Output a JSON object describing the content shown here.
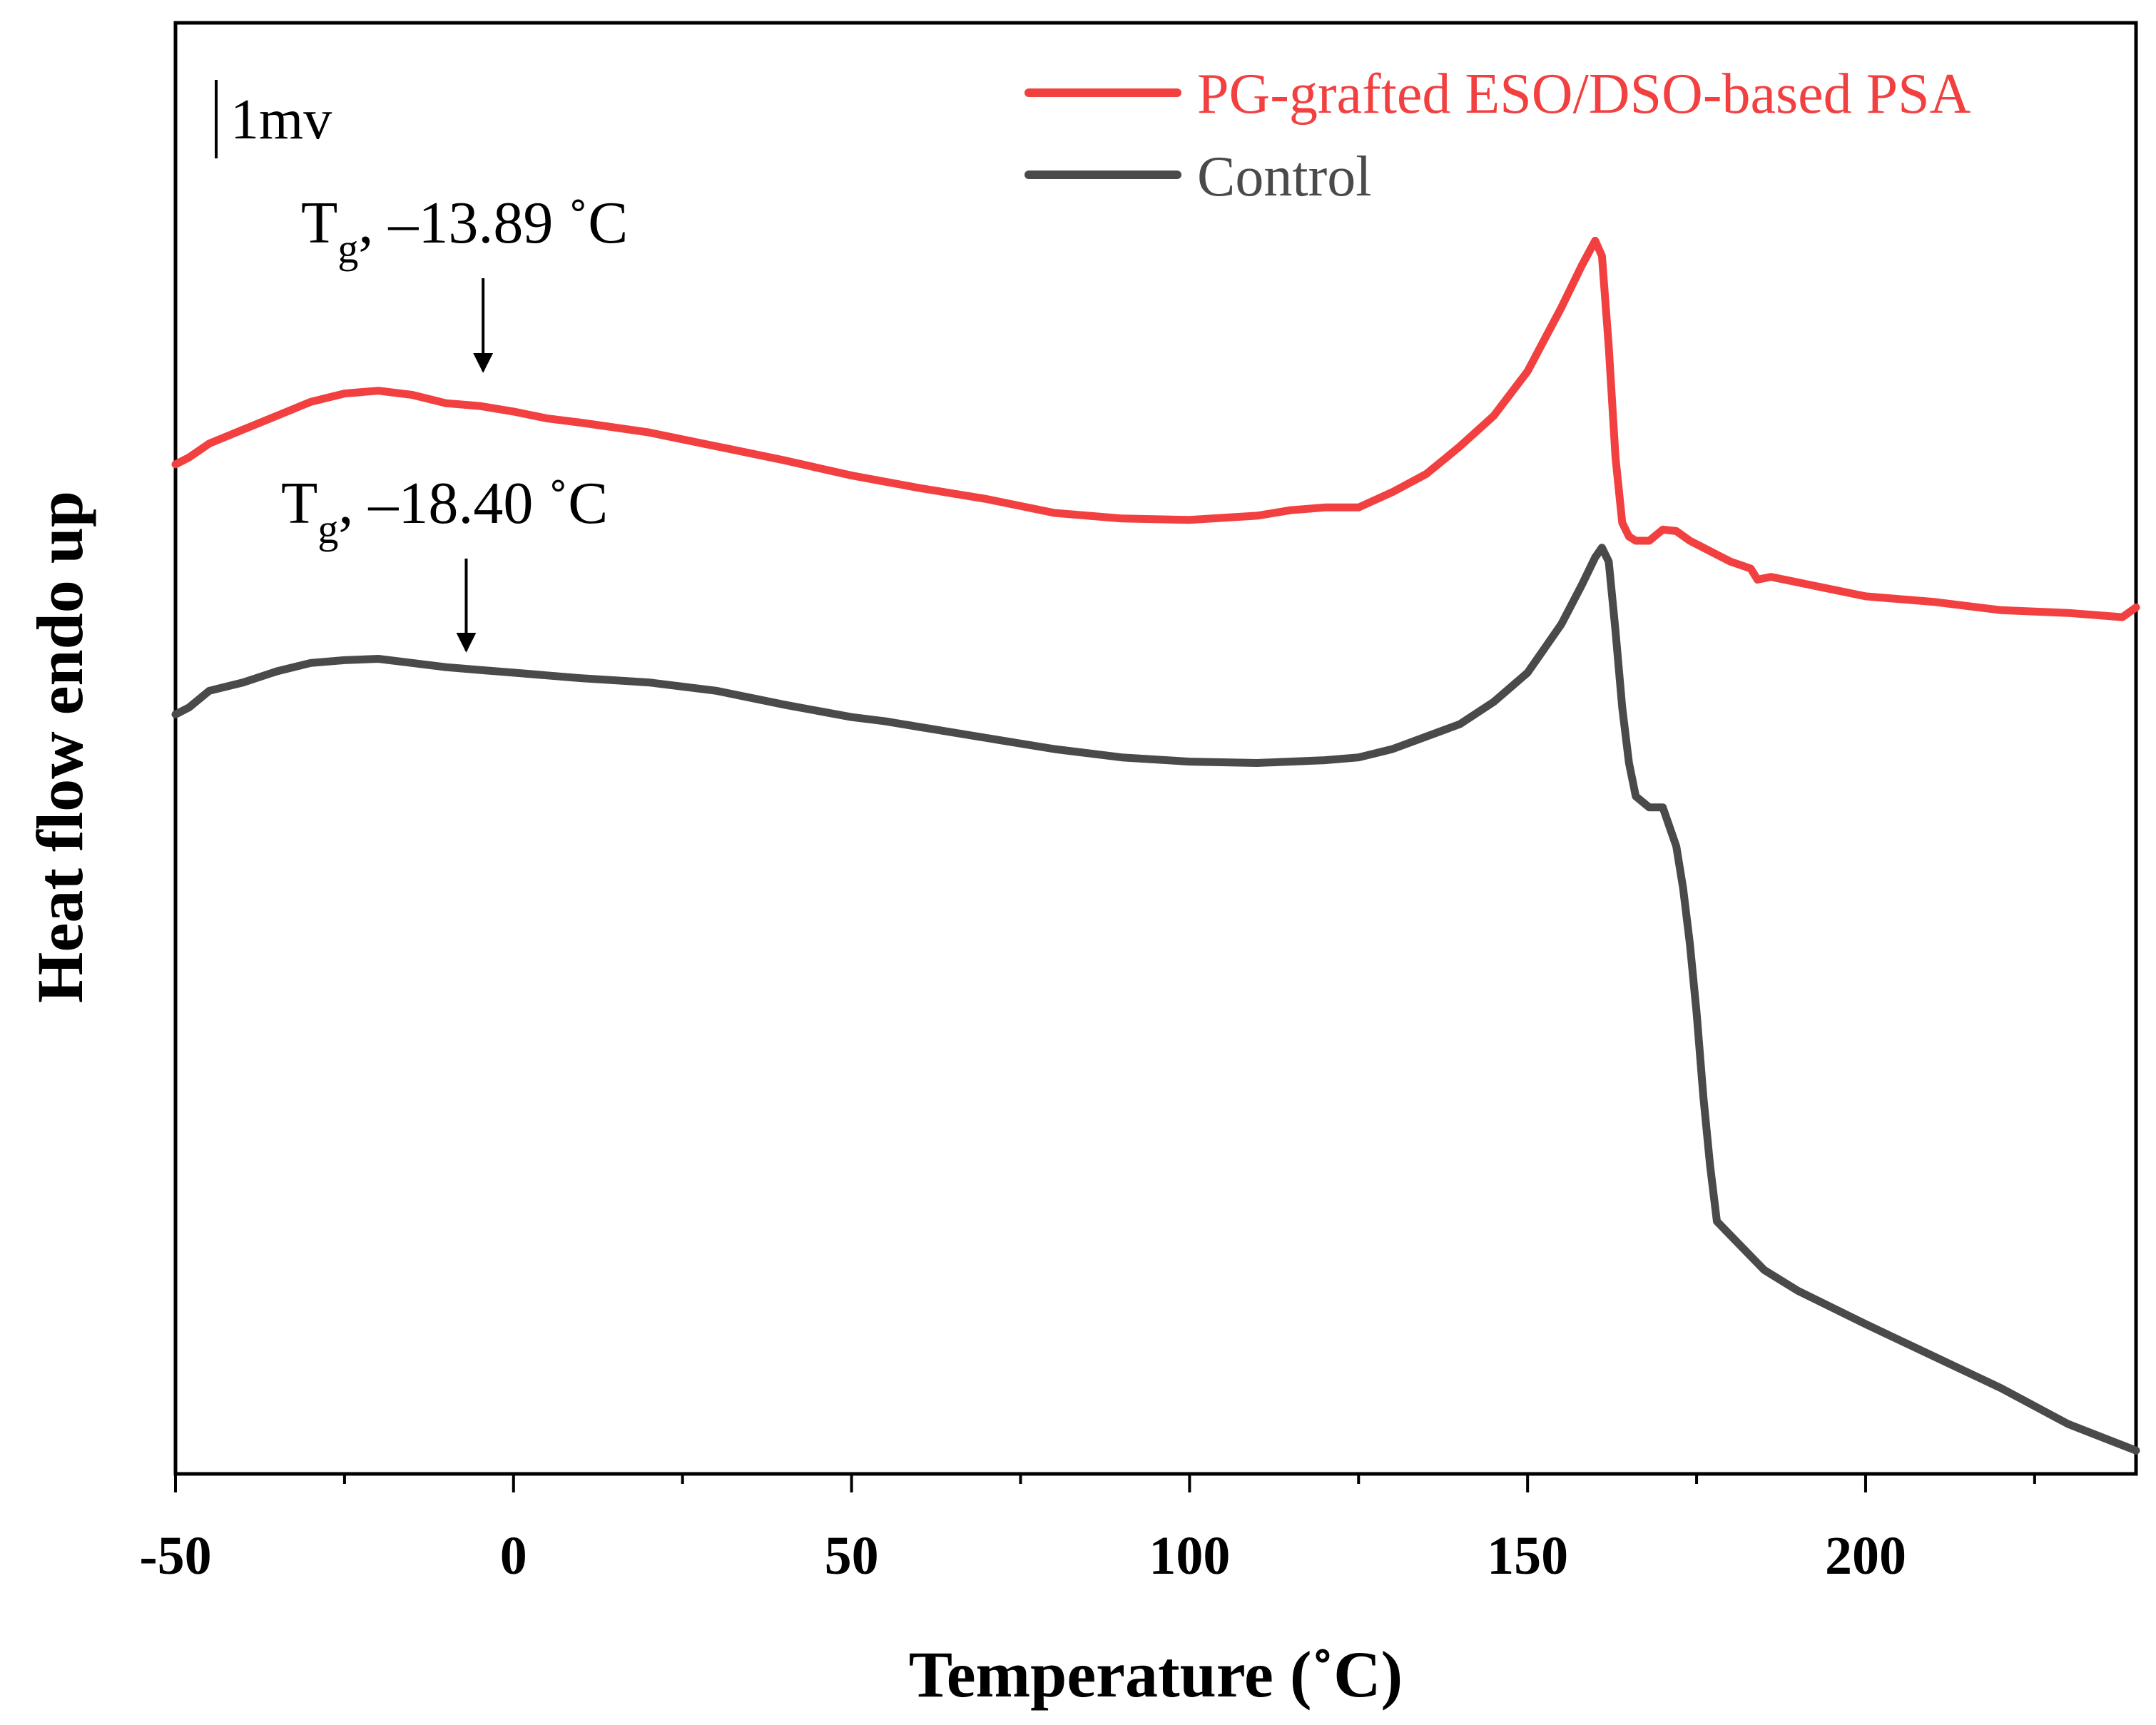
{
  "chart_data": {
    "type": "line",
    "title": "",
    "xlabel": "Temperature (˚C)",
    "ylabel": "Heat flow endo up",
    "xlim": [
      -50,
      240
    ],
    "x_ticks": [
      "-50",
      "0",
      "50",
      "100",
      "150",
      "200"
    ],
    "x_tick_values": [
      -50,
      0,
      50,
      100,
      150,
      200
    ],
    "y_ticks_shown": false,
    "ylim": [
      0,
      100
    ],
    "y_units": "relative heat flow (arbitrary, scale bar 1 mv)",
    "scale_bar_label": "1mv",
    "grid": false,
    "legend_position": "top-right",
    "series": [
      {
        "name": "PG-grafted ESO/DSO-based PSA",
        "color": "#f24040",
        "x": [
          -50,
          -48,
          -45,
          -40,
          -35,
          -30,
          -25,
          -20,
          -15,
          -10,
          -5,
          0,
          5,
          10,
          20,
          30,
          40,
          50,
          60,
          70,
          80,
          90,
          100,
          110,
          115,
          120,
          125,
          130,
          135,
          138,
          140,
          145,
          150,
          155,
          158,
          160,
          161,
          162,
          163,
          164,
          165,
          166,
          168,
          170,
          172,
          174,
          176,
          178,
          180,
          183,
          184,
          186,
          190,
          200,
          210,
          220,
          230,
          238,
          240
        ],
        "values": [
          71.5,
          72,
          73,
          74,
          75,
          76,
          76.6,
          76.8,
          76.5,
          75.9,
          75.7,
          75.3,
          74.8,
          74.5,
          73.8,
          72.8,
          71.8,
          70.7,
          69.8,
          69,
          68,
          67.6,
          67.5,
          67.8,
          68.2,
          68.4,
          68.4,
          69.5,
          70.8,
          72,
          72.8,
          75,
          78.2,
          82.8,
          85.8,
          87.6,
          86.5,
          80,
          72,
          67.3,
          66.3,
          66,
          66,
          66.8,
          66.7,
          66,
          65.5,
          65,
          64.5,
          64,
          63.2,
          63.4,
          63,
          62,
          61.6,
          61,
          60.8,
          60.5,
          61.2
        ]
      },
      {
        "name": "Control",
        "color": "#4a4a4a",
        "x": [
          -50,
          -48,
          -45,
          -40,
          -35,
          -30,
          -25,
          -20,
          -15,
          -10,
          -5,
          0,
          5,
          10,
          20,
          30,
          40,
          50,
          55,
          60,
          70,
          80,
          90,
          100,
          110,
          120,
          125,
          130,
          140,
          145,
          150,
          155,
          158,
          160,
          161,
          162,
          163,
          164,
          165,
          166,
          168,
          170,
          172,
          173,
          174,
          175,
          176,
          177,
          178,
          180,
          185,
          190,
          200,
          210,
          220,
          230,
          240
        ],
        "values": [
          53.5,
          54,
          55.2,
          55.8,
          56.6,
          57.2,
          57.4,
          57.5,
          57.2,
          56.9,
          56.7,
          56.5,
          56.3,
          56.1,
          55.8,
          55.2,
          54.2,
          53.3,
          53,
          52.6,
          51.8,
          51,
          50.4,
          50.1,
          50,
          50.2,
          50.4,
          51,
          52.8,
          54.4,
          56.5,
          60,
          62.8,
          64.8,
          65.5,
          64.5,
          59.5,
          54,
          50,
          47.6,
          46.8,
          46.8,
          44,
          41,
          37,
          32,
          26,
          21,
          17,
          16,
          13.5,
          12,
          9.6,
          7.3,
          5,
          2.4,
          0.5
        ]
      }
    ],
    "annotations": [
      {
        "main": "T",
        "sub": "g",
        "rest": ", –13.89 ˚C",
        "arrow_x": -4.5,
        "series": "PG-grafted ESO/DSO-based PSA"
      },
      {
        "main": "T",
        "sub": "g",
        "rest": ", –18.40 ˚C",
        "arrow_x": -7,
        "series": "Control"
      }
    ]
  }
}
